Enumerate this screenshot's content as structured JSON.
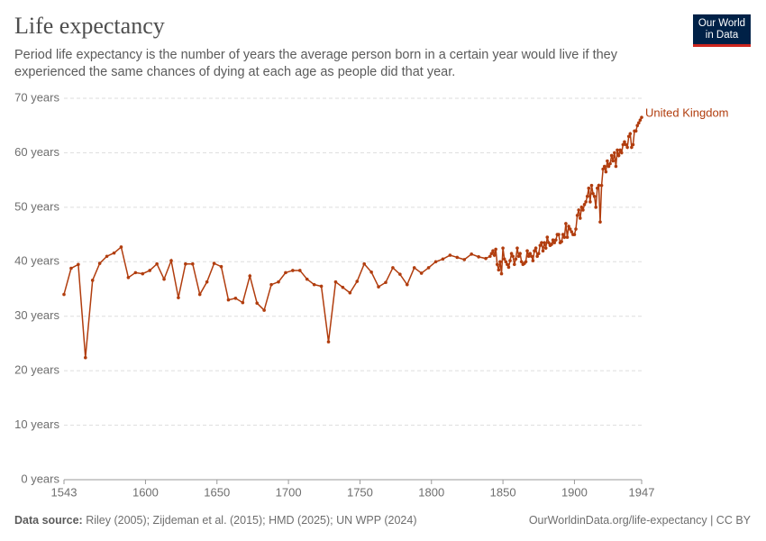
{
  "chart_data": {
    "type": "line",
    "title": "Life expectancy",
    "subtitle": "Period life expectancy is the number of years the average person born in a certain year would live if they experienced the same chances of dying at each age as people did that year.",
    "logo": [
      "Our World",
      "in Data"
    ],
    "source_label": "Data source:",
    "source": "Riley (2005); Zijdeman et al. (2015); HMD (2025); UN WPP (2024)",
    "url": "OurWorldinData.org/life-expectancy | CC BY",
    "x": [
      1543,
      1548,
      1553,
      1558,
      1563,
      1568,
      1573,
      1578,
      1583,
      1588,
      1593,
      1598,
      1603,
      1608,
      1613,
      1618,
      1623,
      1628,
      1633,
      1638,
      1643,
      1648,
      1653,
      1658,
      1663,
      1668,
      1673,
      1678,
      1683,
      1688,
      1693,
      1698,
      1703,
      1708,
      1713,
      1718,
      1723,
      1728,
      1733,
      1738,
      1743,
      1748,
      1753,
      1758,
      1763,
      1768,
      1773,
      1778,
      1783,
      1788,
      1793,
      1798,
      1803,
      1808,
      1813,
      1818,
      1823,
      1828,
      1833,
      1838,
      1841,
      1842,
      1843,
      1844,
      1845,
      1846,
      1847,
      1848,
      1849,
      1850,
      1851,
      1852,
      1853,
      1854,
      1855,
      1856,
      1857,
      1858,
      1859,
      1860,
      1861,
      1862,
      1863,
      1864,
      1865,
      1866,
      1867,
      1868,
      1869,
      1870,
      1871,
      1872,
      1873,
      1874,
      1875,
      1876,
      1877,
      1878,
      1879,
      1880,
      1881,
      1882,
      1883,
      1884,
      1885,
      1886,
      1887,
      1888,
      1889,
      1890,
      1891,
      1892,
      1893,
      1894,
      1895,
      1896,
      1897,
      1898,
      1899,
      1900,
      1901,
      1902,
      1903,
      1904,
      1905,
      1906,
      1907,
      1908,
      1909,
      1910,
      1911,
      1912,
      1913,
      1914,
      1915,
      1916,
      1917,
      1918,
      1919,
      1920,
      1921,
      1922,
      1923,
      1924,
      1925,
      1926,
      1927,
      1928,
      1929,
      1930,
      1931,
      1932,
      1933,
      1934,
      1935,
      1936,
      1937,
      1938,
      1939,
      1940,
      1941,
      1942,
      1943,
      1944,
      1945,
      1946,
      1947
    ],
    "series": [
      {
        "name": "United Kingdom",
        "color": "#b13d0e",
        "values": [
          34,
          38.8,
          39.5,
          22.4,
          36.6,
          39.7,
          41,
          41.6,
          42.7,
          37.1,
          38,
          37.8,
          38.4,
          39.6,
          36.8,
          40.2,
          33.4,
          39.6,
          39.6,
          34,
          36.3,
          39.7,
          39.1,
          33,
          33.3,
          32.5,
          37.4,
          32.4,
          31.1,
          35.8,
          36.3,
          38,
          38.4,
          38.4,
          36.8,
          35.8,
          35.5,
          25.3,
          36.3,
          35.3,
          34.3,
          36.4,
          39.6,
          38.1,
          35.4,
          36.2,
          38.9,
          37.7,
          35.8,
          38.9,
          37.9,
          38.9,
          40,
          40.5,
          41.2,
          40.8,
          40.4,
          41.4,
          40.9,
          40.6,
          41,
          41.5,
          42,
          41.2,
          42.3,
          39.5,
          38.5,
          40,
          37.8,
          42.5,
          40.5,
          40,
          39.5,
          39,
          40.2,
          41.5,
          41,
          39.5,
          40.5,
          42.5,
          41,
          41.5,
          40,
          39.5,
          39.7,
          40,
          42,
          41,
          41.5,
          41,
          40.2,
          42,
          42.5,
          41,
          41.5,
          43,
          43.5,
          42,
          43.5,
          42.5,
          44.5,
          43.5,
          43,
          43.2,
          44,
          43.5,
          44,
          45,
          45,
          43.5,
          43.7,
          45,
          44.5,
          47,
          44.5,
          46.5,
          46,
          45.5,
          45,
          45,
          46,
          48.5,
          49.5,
          48,
          50,
          49.5,
          50.5,
          51,
          52,
          53.5,
          51,
          54,
          52.5,
          52,
          50,
          53.5,
          54,
          47.3,
          54,
          57,
          57.5,
          56.5,
          58.5,
          57.5,
          58,
          59.5,
          58.5,
          60,
          57.5,
          60.5,
          59.5,
          60.5,
          60,
          61.5,
          62,
          61.5,
          61,
          63,
          63.5,
          61,
          61.5,
          64,
          64,
          65,
          65.5,
          66,
          66.5
        ]
      }
    ],
    "xlim": [
      1543,
      1947
    ],
    "xticks": [
      1543,
      1600,
      1650,
      1700,
      1750,
      1800,
      1850,
      1900,
      1947
    ],
    "ylim": [
      0,
      70
    ],
    "yticks": [
      {
        "value": 0,
        "label": "0 years"
      },
      {
        "value": 10,
        "label": "10 years"
      },
      {
        "value": 20,
        "label": "20 years"
      },
      {
        "value": 30,
        "label": "30 years"
      },
      {
        "value": 40,
        "label": "40 years"
      },
      {
        "value": 50,
        "label": "50 years"
      },
      {
        "value": 60,
        "label": "60 years"
      },
      {
        "value": 70,
        "label": "70 years"
      }
    ],
    "grid": true
  }
}
